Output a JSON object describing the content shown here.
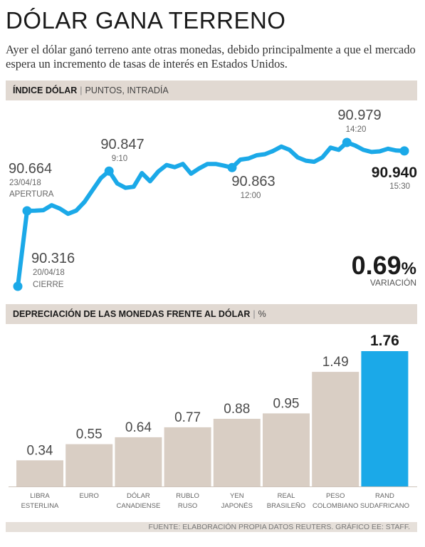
{
  "header": {
    "title": "DÓLAR GANA TERRENO",
    "intro": "Ayer el dólar ganó terreno ante otras monedas, debido principalmente a que el mercado espera un incremento de tasas de interés en Estados Unidos."
  },
  "line_section": {
    "heading_bold": "ÍNDICE DÓLAR",
    "heading_rest": "PUNTOS, INTRADÍA"
  },
  "annotations": {
    "a1": {
      "value": "90.664",
      "sub1": "23/04/18",
      "sub2": "APERTURA"
    },
    "a2": {
      "value": "90.316",
      "sub1": "20/04/18",
      "sub2": "CIERRE"
    },
    "a3": {
      "value": "90.847",
      "sub1": "9:10"
    },
    "a4": {
      "value": "90.863",
      "sub1": "12:00"
    },
    "a5": {
      "value": "90.979",
      "sub1": "14:20"
    },
    "a6": {
      "value": "90.940",
      "sub1": "15:30"
    }
  },
  "variation": {
    "value": "0.69",
    "unit": "%",
    "label": "VARIACIÓN"
  },
  "bar_section": {
    "heading_bold": "DEPRECIACIÓN DE LAS MONEDAS FRENTE AL DÓLAR",
    "heading_rest": "%"
  },
  "source": "FUENTE: ELABORACIÓN PROPIA DATOS REUTERS.  GRÁFICO EE: STAFF.",
  "colors": {
    "accent": "#1ba9e8",
    "bar": "#d9cec4",
    "band": "#e1d9d2"
  },
  "chart_data": [
    {
      "type": "line",
      "title": "ÍNDICE DÓLAR",
      "ylabel": "PUNTOS, INTRADÍA",
      "series": [
        {
          "values": [
            90.316,
            90.664,
            90.665,
            90.667,
            90.69,
            90.674,
            90.65,
            90.665,
            90.705,
            90.76,
            90.815,
            90.847,
            90.79,
            90.77,
            90.775,
            90.838,
            90.8,
            90.845,
            90.875,
            90.865,
            90.88,
            90.835,
            90.86,
            90.88,
            90.88,
            90.872,
            90.863,
            90.9,
            90.905,
            90.92,
            90.925,
            90.94,
            90.96,
            90.945,
            90.91,
            90.895,
            90.89,
            90.91,
            90.955,
            90.945,
            90.979,
            90.965,
            90.945,
            90.935,
            90.938,
            90.95,
            90.942,
            90.94
          ],
          "highlights": [
            {
              "index": 0,
              "value": 90.316,
              "date": "20/04/18",
              "label": "CIERRE"
            },
            {
              "index": 1,
              "value": 90.664,
              "date": "23/04/18",
              "label": "APERTURA"
            },
            {
              "index": 11,
              "value": 90.847,
              "time": "9:10"
            },
            {
              "index": 26,
              "value": 90.863,
              "time": "12:00"
            },
            {
              "index": 40,
              "value": 90.979,
              "time": "14:20"
            },
            {
              "index": 47,
              "value": 90.94,
              "time": "15:30"
            }
          ]
        }
      ]
    },
    {
      "type": "bar",
      "title": "DEPRECIACIÓN DE LAS MONEDAS FRENTE AL DÓLAR",
      "ylabel": "%",
      "categories": [
        [
          "LIBRA",
          "ESTERLINA"
        ],
        [
          "EURO"
        ],
        [
          "DÓLAR",
          "CANADIENSE"
        ],
        [
          "RUBLO",
          "RUSO"
        ],
        [
          "YEN",
          "JAPONÉS"
        ],
        [
          "REAL",
          "BRASILEÑO"
        ],
        [
          "PESO",
          "COLOMBIANO"
        ],
        [
          "RAND",
          "SUDAFRICANO"
        ]
      ],
      "values": [
        0.34,
        0.55,
        0.64,
        0.77,
        0.88,
        0.95,
        1.49,
        1.76
      ],
      "value_labels": [
        "0.34",
        "0.55",
        "0.64",
        "0.77",
        "0.88",
        "0.95",
        "1.49",
        "1.76"
      ],
      "highlight_index": 7,
      "ylim": [
        0,
        1.76
      ]
    }
  ]
}
